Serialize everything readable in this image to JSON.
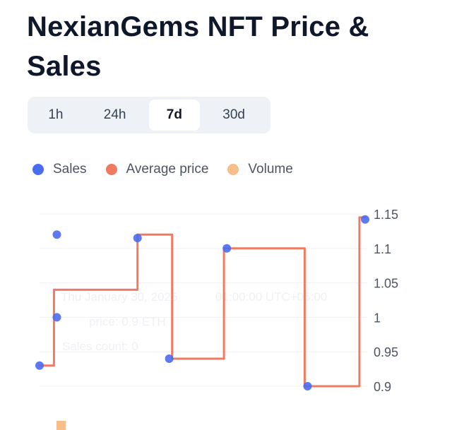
{
  "title": "NexianGems NFT Price & Sales",
  "tabs": [
    {
      "label": "1h",
      "active": false
    },
    {
      "label": "24h",
      "active": false
    },
    {
      "label": "7d",
      "active": true
    },
    {
      "label": "30d",
      "active": false
    }
  ],
  "legend": [
    {
      "name": "Sales",
      "color": "#4a6cf0"
    },
    {
      "name": "Average price",
      "color": "#f07b62"
    },
    {
      "name": "Volume",
      "color": "#f6be88"
    }
  ],
  "tooltip": {
    "date": "Thu January 30, 2025",
    "time": "01:00:00 UTC+05:00",
    "price": "price: 0.9 ETH",
    "sales_count": "Sales count: 0"
  },
  "chart_data": {
    "type": "line",
    "y_axis_position": "right",
    "ylim": [
      0.88,
      1.16
    ],
    "y_ticks": [
      "1.15",
      "1.1",
      "1.05",
      "1",
      "0.95",
      "0.9"
    ],
    "y_tick_values": [
      1.15,
      1.1,
      1.05,
      1,
      0.95,
      0.9
    ],
    "grid": true,
    "series": [
      {
        "name": "Average price",
        "type": "step-line",
        "color": "#f07b62",
        "points": [
          [
            0.0,
            0.93
          ],
          [
            0.05,
            0.93
          ],
          [
            0.05,
            1.04
          ],
          [
            0.34,
            1.04
          ],
          [
            0.34,
            1.12
          ],
          [
            0.46,
            1.12
          ],
          [
            0.46,
            0.94
          ],
          [
            0.64,
            0.94
          ],
          [
            0.64,
            1.1
          ],
          [
            0.92,
            1.1
          ],
          [
            0.92,
            0.9
          ],
          [
            1.11,
            0.9
          ],
          [
            1.11,
            1.145
          ],
          [
            1.13,
            1.145
          ]
        ]
      },
      {
        "name": "Sales",
        "type": "scatter",
        "color": "#4a6cf0",
        "points": [
          [
            0.0,
            0.93
          ],
          [
            0.06,
            1.12
          ],
          [
            0.06,
            1.0
          ],
          [
            0.34,
            1.115
          ],
          [
            0.45,
            0.94
          ],
          [
            0.65,
            1.1
          ],
          [
            0.93,
            0.9
          ],
          [
            1.13,
            1.142
          ]
        ]
      }
    ]
  }
}
